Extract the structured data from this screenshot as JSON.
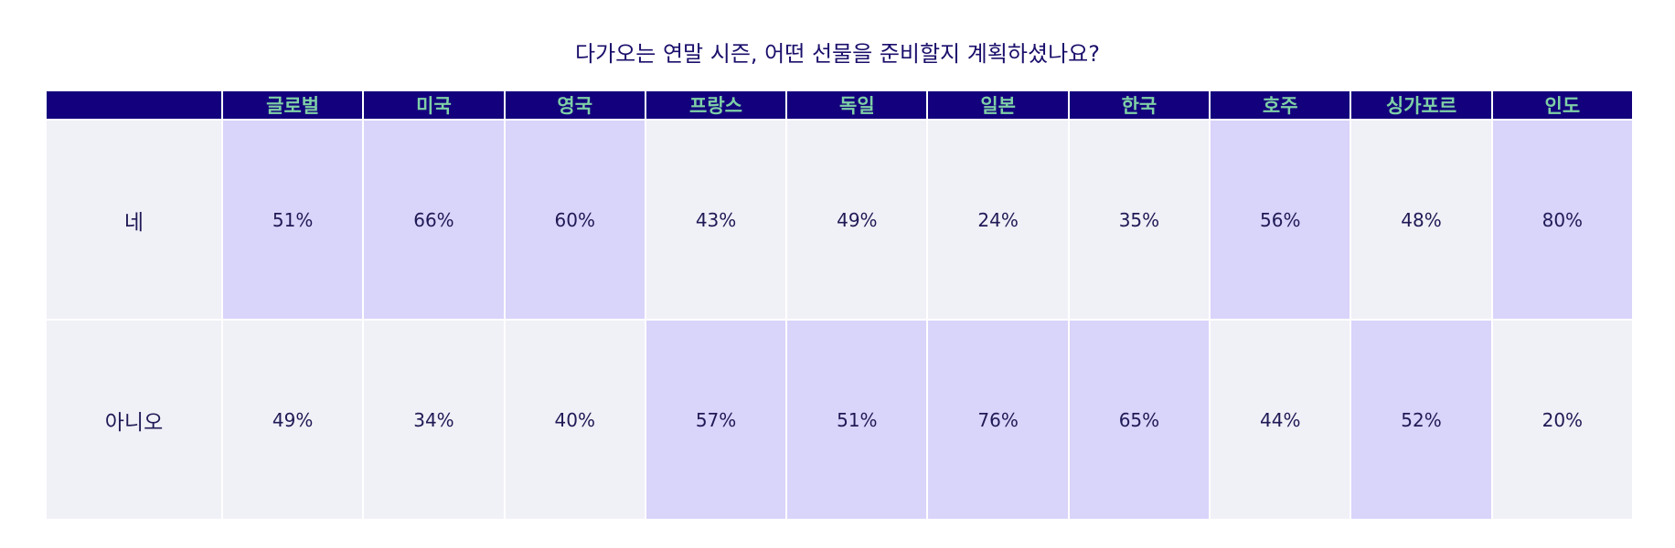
{
  "chart_data": {
    "type": "table",
    "title": "다가오는 연말 시즌, 어떤 선물을 준비할지 계획하셨나요?",
    "columns": [
      "글로벌",
      "미국",
      "영국",
      "프랑스",
      "독일",
      "일본",
      "한국",
      "호주",
      "싱가포르",
      "인도"
    ],
    "rows": [
      {
        "label": "네",
        "values": [
          "51%",
          "66%",
          "60%",
          "43%",
          "49%",
          "24%",
          "35%",
          "56%",
          "48%",
          "80%"
        ]
      },
      {
        "label": "아니오",
        "values": [
          "49%",
          "34%",
          "40%",
          "57%",
          "51%",
          "76%",
          "65%",
          "44%",
          "52%",
          "20%"
        ]
      }
    ]
  },
  "colors": {
    "header_bg": "#13007c",
    "header_text": "#7ed0a6",
    "cell_bg": "#f0f0f7",
    "cell_highlight": "#d9d4fa",
    "text": "#1f1a55",
    "title": "#1a0f6b"
  }
}
